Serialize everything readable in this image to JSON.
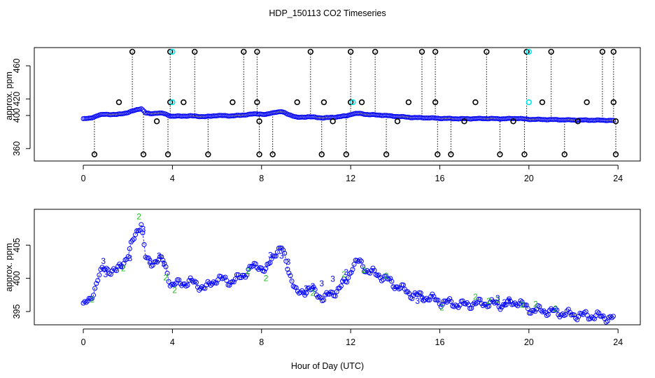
{
  "title": "HDP_150113  CO2 Timeseries",
  "xlabel": "Hour of Day (UTC)",
  "chart_data": [
    {
      "type": "scatter",
      "name": "top-panel",
      "ylabel": "approx. ppm",
      "xlim": [
        -2.2,
        25
      ],
      "ylim": [
        345,
        482
      ],
      "x_ticks": [
        0,
        4,
        8,
        12,
        16,
        20,
        24
      ],
      "y_ticks": [
        360,
        400,
        420,
        460
      ],
      "colors": {
        "main": "#0000ff",
        "spike": "#000000",
        "cyan": "#00e5ee",
        "baseline": "#000000"
      },
      "main_series": {
        "name": "co2-blue",
        "x": [
          0.0,
          0.3,
          0.7,
          1.0,
          1.5,
          2.0,
          2.4,
          2.6,
          2.8,
          3.0,
          3.3,
          3.6,
          3.9,
          4.0,
          4.8,
          5.5,
          6.0,
          6.6,
          7.0,
          7.5,
          7.9,
          8.2,
          8.6,
          8.9,
          9.2,
          9.6,
          10.1,
          10.8,
          11.3,
          11.8,
          12.1,
          12.4,
          12.8,
          13.3,
          14.0,
          14.8,
          15.6,
          16.0,
          17.0,
          18.0,
          18.9,
          19.5,
          19.9,
          20.1,
          21.0,
          22.0,
          23.0,
          23.8
        ],
        "y": [
          396.0,
          396.5,
          400.5,
          401.5,
          401.0,
          403.5,
          407.0,
          408.5,
          403.0,
          402.0,
          403.0,
          402.5,
          399.5,
          399.0,
          399.5,
          398.5,
          400.0,
          399.5,
          400.0,
          401.5,
          402.0,
          401.0,
          404.0,
          404.5,
          401.5,
          397.5,
          398.5,
          397.0,
          398.0,
          399.5,
          402.0,
          402.5,
          401.0,
          400.5,
          399.0,
          397.5,
          397.0,
          396.5,
          396.0,
          396.3,
          396.0,
          396.5,
          395.5,
          395.3,
          395.0,
          394.5,
          394.3,
          394.0
        ]
      },
      "low_markers": {
        "value": 353,
        "x": [
          0.5,
          2.7,
          3.8,
          5.6,
          7.9,
          8.5,
          10.7,
          11.8,
          13.6,
          15.9,
          16.5,
          18.7,
          19.8,
          21.6,
          23.9
        ]
      },
      "mid_markers": {
        "value": 416,
        "x": [
          1.6,
          3.9,
          4.5,
          6.7,
          7.8,
          9.6,
          10.8,
          12.0,
          12.5,
          14.6,
          15.8,
          17.6,
          20.6,
          22.6,
          23.8
        ]
      },
      "mid_cyan_markers": {
        "value": 416,
        "x": [
          4.0,
          12.1,
          20.0
        ]
      },
      "high_markers": {
        "value": 477,
        "x": [
          2.2,
          3.9,
          5.0,
          7.2,
          7.8,
          10.2,
          12.0,
          13.1,
          15.2,
          15.8,
          18.1,
          19.9,
          21.0,
          23.3,
          23.8
        ]
      },
      "high_cyan_markers": {
        "value": 477,
        "x": [
          4.0,
          20.0
        ]
      },
      "other_markers": {
        "x": [
          3.3,
          7.9,
          11.2,
          14.1,
          17.1,
          19.3,
          22.2,
          23.9
        ],
        "y": [
          393,
          393,
          393,
          393,
          393,
          393,
          393,
          393
        ]
      }
    },
    {
      "type": "scatter",
      "name": "bottom-panel",
      "ylabel": "approx. ppm",
      "xlim": [
        -2.2,
        25
      ],
      "ylim": [
        393.0,
        410.4
      ],
      "x_ticks": [
        0,
        4,
        8,
        12,
        16,
        20,
        24
      ],
      "y_ticks": [
        395,
        400,
        405
      ],
      "colors": {
        "circle": "#0000ff",
        "line": "#0000ff",
        "green_label": "#22bb22",
        "blue_label": "#0000ff"
      },
      "series": {
        "name": "co2-detail",
        "x": [
          0.0,
          0.3,
          0.7,
          1.0,
          1.5,
          2.0,
          2.4,
          2.6,
          2.8,
          3.0,
          3.3,
          3.6,
          3.9,
          4.0,
          4.8,
          5.5,
          6.0,
          6.6,
          7.0,
          7.5,
          7.9,
          8.2,
          8.6,
          8.9,
          9.2,
          9.6,
          10.1,
          10.8,
          11.3,
          11.8,
          12.1,
          12.4,
          12.8,
          13.3,
          14.0,
          14.8,
          15.6,
          16.0,
          17.0,
          18.0,
          18.9,
          19.5,
          19.9,
          20.1,
          21.0,
          22.0,
          23.0,
          23.8
        ],
        "y": [
          396.0,
          396.5,
          400.5,
          401.5,
          401.0,
          403.5,
          407.0,
          408.5,
          403.0,
          402.0,
          403.0,
          402.5,
          399.5,
          399.0,
          399.5,
          398.5,
          400.0,
          399.5,
          400.0,
          401.5,
          402.0,
          401.0,
          404.0,
          404.5,
          401.5,
          397.5,
          398.5,
          397.0,
          398.0,
          399.5,
          402.0,
          402.5,
          401.0,
          400.5,
          399.0,
          397.5,
          397.0,
          396.5,
          396.0,
          396.3,
          396.0,
          396.5,
          395.5,
          395.3,
          395.0,
          394.5,
          394.3,
          394.0
        ]
      },
      "labels_2": {
        "text": "2",
        "x": [
          0.4,
          1.8,
          2.5,
          3.7,
          4.1,
          7.4,
          8.2,
          10.3,
          11.7,
          12.6,
          13.6,
          16.1,
          17.6,
          18.2,
          18.6,
          19.7,
          20.3,
          21.2
        ],
        "y": [
          396.8,
          401.5,
          409.3,
          400.1,
          398.2,
          401.1,
          400.0,
          397.8,
          400.6,
          401.2,
          400.4,
          395.6,
          397.2,
          396.6,
          396.8,
          396.0,
          396.1,
          395.4
        ]
      },
      "labels_3": {
        "text": "3",
        "x": [
          0.9,
          1.0,
          1.7,
          2.1,
          2.7,
          3.0,
          3.4,
          3.6,
          8.4,
          8.9,
          9.2,
          10.0,
          10.3,
          10.7,
          11.2,
          11.8,
          15.0,
          15.2,
          18.6,
          18.9,
          19.1
        ],
        "y": [
          402.6,
          400.6,
          401.8,
          403.0,
          407.4,
          402.6,
          403.4,
          402.2,
          403.5,
          403.4,
          402.5,
          398.5,
          398.8,
          399.2,
          399.9,
          400.9,
          396.6,
          396.9,
          397.0,
          396.4,
          396.6
        ]
      }
    }
  ]
}
